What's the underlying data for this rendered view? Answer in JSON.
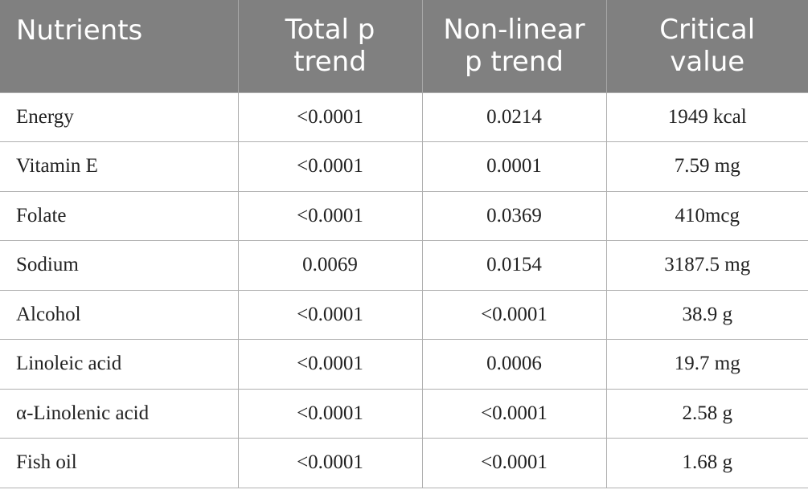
{
  "table": {
    "header": [
      [
        "Nutrients"
      ],
      [
        "Total p",
        "trend"
      ],
      [
        "Non-linear",
        "p trend"
      ],
      [
        "Critical",
        "value"
      ]
    ],
    "rows": [
      [
        "Energy",
        "<0.0001",
        "0.0214",
        "1949 kcal"
      ],
      [
        "Vitamin E",
        "<0.0001",
        "0.0001",
        "7.59 mg"
      ],
      [
        "Folate",
        "<0.0001",
        "0.0369",
        "410mcg"
      ],
      [
        "Sodium",
        "0.0069",
        "0.0154",
        "3187.5 mg"
      ],
      [
        "Alcohol",
        "<0.0001",
        "<0.0001",
        "38.9 g"
      ],
      [
        "Linoleic acid",
        "<0.0001",
        "0.0006",
        "19.7 mg"
      ],
      [
        "α-Linolenic acid",
        "<0.0001",
        "<0.0001",
        "2.58 g"
      ],
      [
        "Fish oil",
        "<0.0001",
        "<0.0001",
        "1.68 g"
      ]
    ]
  }
}
